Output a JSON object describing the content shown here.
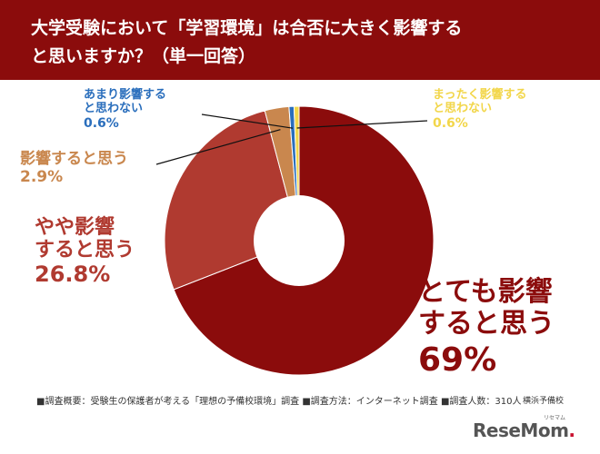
{
  "header": {
    "title_line1": "大学受験において「学習環境」は合否に大きく影響する",
    "title_line2": "と思いますか？（単一回答）"
  },
  "colors": {
    "header_bg": "#8b0c0c",
    "slice_1": "#8b0c0c",
    "slice_2": "#b03a30",
    "slice_3": "#c9874e",
    "slice_4": "#2a6ebc",
    "slice_5": "#f2d64a"
  },
  "chart_data": {
    "type": "pie",
    "donut": true,
    "title": "大学受験において「学習環境」は合否に大きく影響すると思いますか？（単一回答）",
    "slices": [
      {
        "label_lines": [
          "とても影響",
          "すると思う"
        ],
        "value": 69,
        "value_label": "69%",
        "color": "#8b0c0c"
      },
      {
        "label_lines": [
          "やや影響",
          "すると思う"
        ],
        "value": 26.8,
        "value_label": "26.8%",
        "color": "#b03a30"
      },
      {
        "label_lines": [
          "影響すると思う"
        ],
        "value": 2.9,
        "value_label": "2.9%",
        "color": "#c9874e"
      },
      {
        "label_lines": [
          "あまり影響する",
          "と思わない"
        ],
        "value": 0.6,
        "value_label": "0.6%",
        "color": "#2a6ebc"
      },
      {
        "label_lines": [
          "まったく影響する",
          "と思わない"
        ],
        "value": 0.6,
        "value_label": "0.6%",
        "color": "#f2d64a"
      }
    ]
  },
  "footer": {
    "note": "■調査概要：受験生の保護者が考える「理想の予備校環境」調査 ■調査方法：インターネット調査 ■調査人数：310人",
    "sponsor": "横浜予備校",
    "logo_main": "ReseMom",
    "logo_dot": ".",
    "logo_ruby": "リセマム"
  }
}
